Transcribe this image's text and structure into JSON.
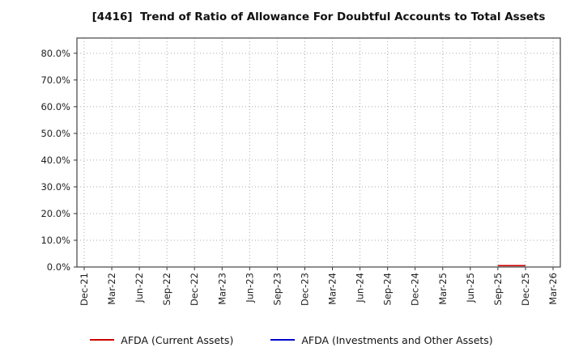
{
  "title": "[4416]  Trend of Ratio of Allowance For Doubtful Accounts to Total Assets",
  "chart_data": {
    "type": "line",
    "categories": [
      "Dec-21",
      "Mar-22",
      "Jun-22",
      "Sep-22",
      "Dec-22",
      "Mar-23",
      "Jun-23",
      "Sep-23",
      "Dec-23",
      "Mar-24",
      "Jun-24",
      "Sep-24",
      "Dec-24",
      "Mar-25",
      "Jun-25",
      "Sep-25",
      "Dec-25",
      "Mar-26"
    ],
    "series": [
      {
        "name": "AFDA (Current Assets)",
        "color": "#cc0000",
        "values": [
          null,
          null,
          null,
          null,
          null,
          null,
          null,
          null,
          null,
          null,
          null,
          null,
          null,
          null,
          null,
          0.5,
          0.5,
          null
        ]
      },
      {
        "name": "AFDA (Investments and Other Assets)",
        "color": "#0000cc",
        "values": [
          null,
          null,
          null,
          null,
          null,
          null,
          null,
          null,
          null,
          null,
          null,
          null,
          null,
          null,
          null,
          null,
          null,
          null
        ]
      }
    ],
    "ylim": [
      0,
      85.7
    ],
    "yticks": [
      0,
      10,
      20,
      30,
      40,
      50,
      60,
      70,
      80
    ],
    "ytick_labels": [
      "0.0%",
      "10.0%",
      "20.0%",
      "30.0%",
      "40.0%",
      "50.0%",
      "60.0%",
      "70.0%",
      "80.0%"
    ],
    "grid": "dotted",
    "legend_position": "bottom"
  }
}
